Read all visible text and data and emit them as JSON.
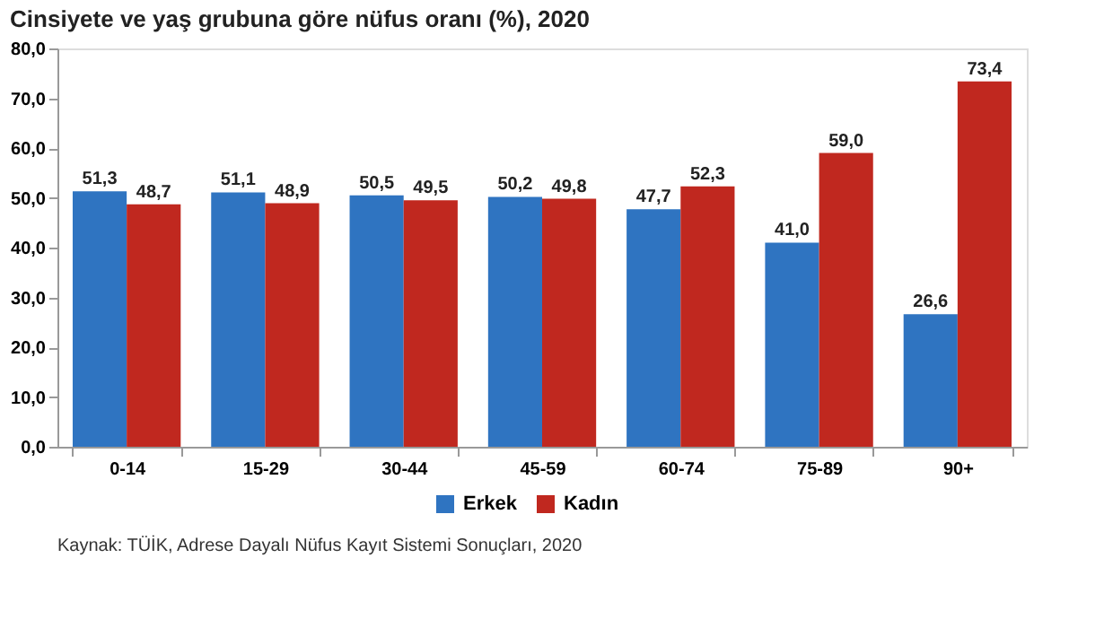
{
  "chart_data": {
    "type": "bar",
    "title": "Cinsiyete ve yaş grubuna göre nüfus oranı (%), 2020",
    "categories": [
      "0-14",
      "15-29",
      "30-44",
      "45-59",
      "60-74",
      "75-89",
      "90+"
    ],
    "series": [
      {
        "name": "Erkek",
        "color": "#2f74c1",
        "values": [
          51.3,
          51.1,
          50.5,
          50.2,
          47.7,
          41.0,
          26.6
        ],
        "value_labels": [
          "51,3",
          "51,1",
          "50,5",
          "50,2",
          "47,7",
          "41,0",
          "26,6"
        ]
      },
      {
        "name": "Kadın",
        "color": "#c0281f",
        "values": [
          48.7,
          48.9,
          49.5,
          49.8,
          52.3,
          59.0,
          73.4
        ],
        "value_labels": [
          "48,7",
          "48,9",
          "49,5",
          "49,8",
          "52,3",
          "59,0",
          "73,4"
        ]
      }
    ],
    "ylim": [
      0,
      80
    ],
    "yticks": [
      {
        "value": 0,
        "label": "0,0"
      },
      {
        "value": 10,
        "label": "10,0"
      },
      {
        "value": 20,
        "label": "20,0"
      },
      {
        "value": 30,
        "label": "30,0"
      },
      {
        "value": 40,
        "label": "40,0"
      },
      {
        "value": 50,
        "label": "50,0"
      },
      {
        "value": 60,
        "label": "60,0"
      },
      {
        "value": 70,
        "label": "70,0"
      },
      {
        "value": 80,
        "label": "80,0"
      }
    ],
    "grid": false,
    "legend": "bottom",
    "annotations": [
      "Kaynak: TÜİK, Adrese Dayalı Nüfus Kayıt Sistemi Sonuçları, 2020"
    ]
  }
}
